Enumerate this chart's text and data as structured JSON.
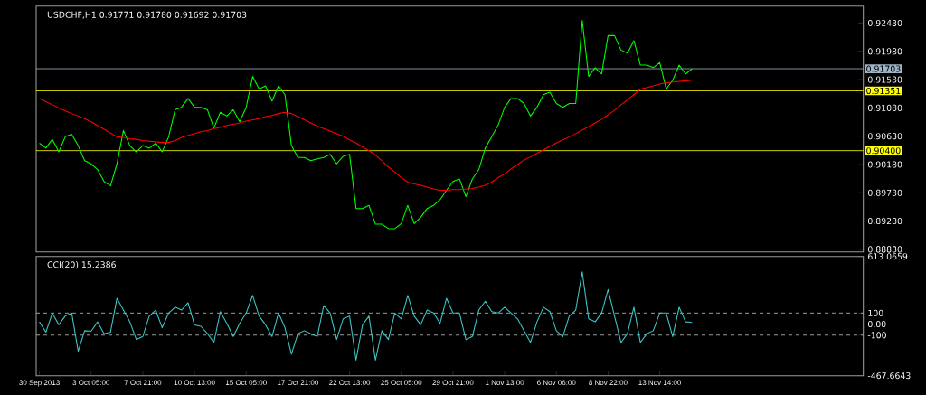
{
  "chart_data": [
    {
      "type": "line",
      "title": "USDCHF,H1 0.91771 0.91780 0.91692 0.91703",
      "series": [
        {
          "color": "#00ff00",
          "values": [
            0.9052,
            0.9044,
            0.9058,
            0.9038,
            0.9062,
            0.9066,
            0.9048,
            0.9024,
            0.9019,
            0.901,
            0.8991,
            0.8984,
            0.9019,
            0.9072,
            0.9048,
            0.9038,
            0.9048,
            0.9044,
            0.9052,
            0.9038,
            0.9062,
            0.9105,
            0.9109,
            0.9123,
            0.9109,
            0.9109,
            0.9105,
            0.9076,
            0.9101,
            0.9095,
            0.9105,
            0.9086,
            0.9109,
            0.9158,
            0.9138,
            0.9143,
            0.9119,
            0.9143,
            0.9129,
            0.9048,
            0.9029,
            0.9029,
            0.9024,
            0.9027,
            0.9029,
            0.9034,
            0.9019,
            0.9031,
            0.9034,
            0.8948,
            0.8948,
            0.8953,
            0.8923,
            0.8923,
            0.8916,
            0.8916,
            0.8924,
            0.8953,
            0.8924,
            0.8934,
            0.8948,
            0.8953,
            0.8962,
            0.8977,
            0.8991,
            0.8995,
            0.8967,
            0.8995,
            0.901,
            0.9044,
            0.9062,
            0.9081,
            0.9109,
            0.9123,
            0.9123,
            0.9115,
            0.9095,
            0.9109,
            0.9129,
            0.9133,
            0.9115,
            0.9109,
            0.9115,
            0.9115,
            0.9247,
            0.9158,
            0.9172,
            0.9162,
            0.9223,
            0.9223,
            0.92,
            0.9195,
            0.9215,
            0.9176,
            0.9176,
            0.9172,
            0.918,
            0.9138,
            0.9152,
            0.9176,
            0.9162,
            0.917,
            null,
            null,
            null,
            null,
            null,
            null,
            null,
            null,
            null,
            null,
            null,
            null,
            null,
            null,
            null,
            null,
            null,
            null,
            null,
            null,
            null,
            null,
            null,
            null,
            null,
            null
          ]
        },
        {
          "color": "#ff0000",
          "values": [
            0.9123,
            0.9118,
            0.9113,
            0.9108,
            0.9103,
            0.9099,
            0.9095,
            0.9091,
            0.9086,
            0.908,
            0.9074,
            0.9068,
            0.9062,
            0.9061,
            0.9059,
            0.9058,
            0.9056,
            0.9055,
            0.9054,
            0.9053,
            0.9053,
            0.9056,
            0.9061,
            0.9064,
            0.9067,
            0.907,
            0.9072,
            0.9075,
            0.9077,
            0.908,
            0.9082,
            0.9084,
            0.9087,
            0.9089,
            0.9091,
            0.9094,
            0.9096,
            0.9099,
            0.9101,
            0.9099,
            0.9094,
            0.9089,
            0.9084,
            0.9079,
            0.9075,
            0.9071,
            0.9067,
            0.9063,
            0.9057,
            0.9052,
            0.9046,
            0.904,
            0.9033,
            0.9024,
            0.9014,
            0.9006,
            0.8997,
            0.899,
            0.8987,
            0.8985,
            0.8982,
            0.8979,
            0.8977,
            0.8977,
            0.8978,
            0.8978,
            0.8979,
            0.898,
            0.8982,
            0.8985,
            0.899,
            0.8997,
            0.9003,
            0.9011,
            0.9018,
            0.9025,
            0.903,
            0.9036,
            0.9041,
            0.9047,
            0.9052,
            0.9057,
            0.9062,
            0.9067,
            0.9073,
            0.9078,
            0.9084,
            0.909,
            0.9097,
            0.9104,
            0.9113,
            0.9121,
            0.9129,
            0.9138,
            0.914,
            0.9143,
            0.9146,
            0.9148,
            0.9149,
            0.915,
            0.9151,
            0.9152,
            null,
            null,
            null,
            null,
            null,
            null,
            null,
            null,
            null,
            null,
            null,
            null,
            null,
            null,
            null,
            null,
            null,
            null,
            null,
            null,
            null,
            null,
            null,
            null,
            null,
            null
          ]
        }
      ],
      "ylim": [
        0.8879,
        0.927
      ],
      "yticks": [
        {
          "value": 0.8883,
          "label": "0.88830"
        },
        {
          "value": 0.8928,
          "label": "0.89280"
        },
        {
          "value": 0.8973,
          "label": "0.89730"
        },
        {
          "value": 0.9018,
          "label": "0.90180"
        },
        {
          "value": 0.9063,
          "label": "0.90630"
        },
        {
          "value": 0.9108,
          "label": "0.91080"
        },
        {
          "value": 0.9153,
          "label": "0.91530"
        },
        {
          "value": 0.9198,
          "label": "0.91980"
        },
        {
          "value": 0.9243,
          "label": "0.92430"
        }
      ],
      "ref_lines": [
        {
          "axis": "y",
          "value": 0.91703,
          "label": "0.91703",
          "color": "#a0b4c8",
          "line_style": "solid"
        },
        {
          "axis": "y",
          "value": 0.91351,
          "label": "0.91351",
          "color": "#ffff00",
          "line_style": "solid"
        },
        {
          "axis": "y",
          "value": 0.904,
          "label": "0.90400",
          "color": "#ffff00",
          "line_style": "solid"
        }
      ],
      "tick_labels": "y"
    },
    {
      "type": "line",
      "title": "CCI(20) 15.2386",
      "categories": [
        "30 Sep 2013",
        null,
        null,
        null,
        null,
        null,
        null,
        null,
        "3 Oct 05:00",
        null,
        null,
        null,
        null,
        null,
        null,
        null,
        "7 Oct 21:00",
        null,
        null,
        null,
        null,
        null,
        null,
        null,
        "10 Oct 13:00",
        null,
        null,
        null,
        null,
        null,
        null,
        null,
        "15 Oct 05:00",
        null,
        null,
        null,
        null,
        null,
        null,
        null,
        "17 Oct 21:00",
        null,
        null,
        null,
        null,
        null,
        null,
        null,
        "22 Oct 13:00",
        null,
        null,
        null,
        null,
        null,
        null,
        null,
        "25 Oct 05:00",
        null,
        null,
        null,
        null,
        null,
        null,
        null,
        "29 Oct 21:00",
        null,
        null,
        null,
        null,
        null,
        null,
        null,
        "1 Nov 13:00",
        null,
        null,
        null,
        null,
        null,
        null,
        null,
        "6 Nov 06:00",
        null,
        null,
        null,
        null,
        null,
        null,
        null,
        "8 Nov 22:00",
        null,
        null,
        null,
        null,
        null,
        null,
        null,
        "13 Nov 14:00",
        null,
        null,
        null,
        null,
        null,
        null,
        null,
        null,
        null,
        null,
        null,
        null,
        null,
        null,
        null,
        null,
        null,
        null,
        null,
        null,
        null,
        null,
        null,
        null,
        null,
        null,
        null,
        null,
        null,
        null,
        null
      ],
      "series": [
        {
          "color": "#3cc8c8",
          "values": [
            20,
            -73,
            100,
            -7,
            73,
            100,
            -247,
            -60,
            -65,
            20,
            -87,
            -73,
            233,
            127,
            20,
            -140,
            -113,
            73,
            127,
            -33,
            100,
            153,
            127,
            193,
            -7,
            -20,
            -87,
            -167,
            113,
            7,
            -113,
            7,
            100,
            260,
            73,
            -7,
            -113,
            100,
            -33,
            -273,
            -87,
            -60,
            -87,
            -113,
            167,
            100,
            -140,
            47,
            73,
            -327,
            -7,
            73,
            -327,
            -60,
            -140,
            100,
            47,
            260,
            73,
            -7,
            127,
            100,
            7,
            233,
            100,
            100,
            -140,
            -113,
            127,
            207,
            113,
            100,
            153,
            100,
            47,
            -60,
            -167,
            20,
            153,
            113,
            -60,
            -113,
            73,
            127,
            473,
            47,
            20,
            100,
            313,
            73,
            -167,
            -87,
            153,
            -167,
            -87,
            -60,
            100,
            100,
            -113,
            153,
            20,
            15.2386,
            null,
            null,
            null,
            null,
            null,
            null,
            null,
            null,
            null,
            null,
            null,
            null,
            null,
            null,
            null,
            null,
            null,
            null,
            null,
            null,
            null,
            null,
            null,
            null,
            null,
            null
          ]
        }
      ],
      "ylim": [
        -467.6643,
        613.0659
      ],
      "yticks": [
        -467.6643,
        -100,
        {
          "value": 0,
          "label": "0.00"
        },
        100,
        613.0659
      ],
      "ref_lines": [
        {
          "axis": "y",
          "value": 100,
          "color": "#c0c0c0",
          "line_style": "dashed"
        },
        {
          "axis": "y",
          "value": -100,
          "color": "#c0c0c0",
          "line_style": "dashed"
        }
      ]
    }
  ]
}
